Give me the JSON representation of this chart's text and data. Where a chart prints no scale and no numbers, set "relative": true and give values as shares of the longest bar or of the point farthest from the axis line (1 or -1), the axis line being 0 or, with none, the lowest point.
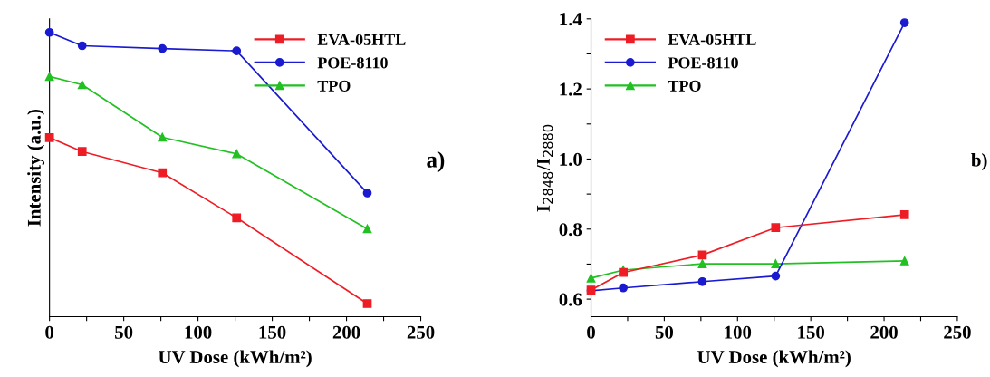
{
  "chart_data": [
    {
      "type": "line",
      "relative": true,
      "xlabel": "UV Dose (kWh/m²)",
      "ylabel": "Intensity (a.u.)",
      "annotations": [
        "a)"
      ],
      "x": [
        0,
        22,
        76,
        126,
        214
      ],
      "xlim": [
        0,
        250
      ],
      "xticks": [
        0,
        {
          "value": 25,
          "label": null
        },
        50,
        {
          "value": 75,
          "label": null
        },
        100,
        {
          "value": 125,
          "label": null
        },
        150,
        {
          "value": 175,
          "label": null
        },
        200,
        {
          "value": 225,
          "label": null
        },
        250
      ],
      "legend": "top right",
      "grid": false,
      "line_style": "solid",
      "series": [
        {
          "name": "EVA-05HTL",
          "color": "#ee1c25",
          "marker": "square",
          "values": [
            0.63,
            0.581,
            0.506,
            0.348,
            0.046
          ]
        },
        {
          "name": "POE-8110",
          "color": "#1a1ad0",
          "marker": "circle",
          "values": [
            1,
            0.953,
            0.943,
            0.935,
            0.435
          ]
        },
        {
          "name": "TPO",
          "color": "#22c022",
          "marker": "triangle",
          "values": [
            0.845,
            0.816,
            0.631,
            0.573,
            0.309
          ]
        }
      ]
    },
    {
      "type": "line",
      "xlabel": "UV Dose (kWh/m²)",
      "ylabel": "I$_{2848}$/I$_{2880}$",
      "annotations": [
        "b)"
      ],
      "x": [
        0,
        22,
        76,
        126,
        214
      ],
      "xlim": [
        0,
        250
      ],
      "ylim": [
        0.55,
        1.4
      ],
      "xticks": [
        0,
        {
          "value": 25,
          "label": null
        },
        50,
        {
          "value": 75,
          "label": null
        },
        100,
        {
          "value": 125,
          "label": null
        },
        150,
        {
          "value": 175,
          "label": null
        },
        200,
        {
          "value": 225,
          "label": null
        },
        250
      ],
      "yticks": [
        {
          "value": 0.6,
          "label": "0.6"
        },
        {
          "value": 0.7,
          "label": null
        },
        {
          "value": 0.8,
          "label": "0.8"
        },
        {
          "value": 0.9,
          "label": null
        },
        {
          "value": 1.0,
          "label": "1.0"
        },
        {
          "value": 1.1,
          "label": null
        },
        {
          "value": 1.2,
          "label": "1.2"
        },
        {
          "value": 1.3,
          "label": null
        },
        {
          "value": 1.4,
          "label": "1.4"
        }
      ],
      "legend": "top left",
      "grid": false,
      "line_style": "solid",
      "series": [
        {
          "name": "EVA-05HTL",
          "color": "#ee1c25",
          "marker": "square",
          "values": [
            0.626,
            0.676,
            0.726,
            0.804,
            0.841
          ]
        },
        {
          "name": "POE-8110",
          "color": "#1a1ad0",
          "marker": "circle",
          "values": [
            0.624,
            0.632,
            0.65,
            0.666,
            1.389
          ]
        },
        {
          "name": "TPO",
          "color": "#22c022",
          "marker": "triangle",
          "values": [
            0.66,
            0.683,
            0.701,
            0.701,
            0.709
          ]
        }
      ]
    }
  ]
}
